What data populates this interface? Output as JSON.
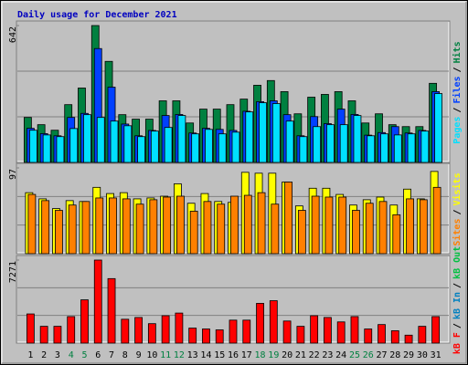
{
  "title": "Daily usage for December 2021",
  "legend_separator": "/",
  "chart_data": [
    {
      "type": "bar",
      "ylim": [
        0,
        642
      ],
      "yticks": [
        642
      ],
      "series": [
        {
          "name": "Hits",
          "color": "#008040",
          "values": [
            211,
            177,
            151,
            271,
            349,
            642,
            474,
            224,
            203,
            203,
            289,
            289,
            185,
            250,
            250,
            271,
            297,
            362,
            384,
            332,
            228,
            306,
            319,
            332,
            289,
            185,
            228,
            177,
            168,
            168,
            371
          ]
        },
        {
          "name": "Files",
          "color": "#0040ff",
          "values": [
            160,
            135,
            125,
            211,
            230,
            534,
            353,
            180,
            125,
            150,
            220,
            225,
            138,
            160,
            155,
            150,
            240,
            285,
            289,
            224,
            125,
            215,
            182,
            250,
            225,
            128,
            140,
            168,
            138,
            150,
            332
          ]
        },
        {
          "name": "Pages",
          "color": "#00e0ff",
          "values": [
            151,
            129,
            121,
            159,
            224,
            211,
            194,
            172,
            121,
            147,
            164,
            220,
            134,
            155,
            134,
            142,
            237,
            280,
            276,
            194,
            121,
            168,
            177,
            177,
            220,
            125,
            134,
            129,
            134,
            147,
            323
          ]
        }
      ]
    },
    {
      "type": "bar",
      "ylim": [
        0,
        97
      ],
      "yticks": [
        97
      ],
      "series": [
        {
          "name": "Visits",
          "color": "#ffff00",
          "values": [
            69,
            62,
            51,
            60,
            59,
            75,
            68,
            69,
            62,
            63,
            65,
            79,
            57,
            68,
            59,
            58,
            92,
            91,
            91,
            81,
            54,
            74,
            74,
            67,
            55,
            61,
            64,
            55,
            73,
            62,
            93
          ]
        },
        {
          "name": "Sites",
          "color": "#ff8000",
          "values": [
            67,
            60,
            49,
            55,
            59,
            63,
            63,
            62,
            56,
            61,
            64,
            65,
            48,
            59,
            56,
            65,
            66,
            69,
            56,
            81,
            49,
            65,
            64,
            64,
            49,
            57,
            59,
            44,
            62,
            61,
            75
          ]
        }
      ]
    },
    {
      "type": "bar",
      "ylim": [
        0,
        7271
      ],
      "yticks": [
        7271
      ],
      "categories": [
        "1",
        "2",
        "3",
        "4",
        "5",
        "6",
        "7",
        "8",
        "9",
        "10",
        "11",
        "12",
        "13",
        "14",
        "15",
        "16",
        "17",
        "18",
        "19",
        "20",
        "21",
        "22",
        "23",
        "24",
        "25",
        "26",
        "27",
        "28",
        "29",
        "30",
        "31"
      ],
      "category_colors": [
        "#000000",
        "#000000",
        "#000000",
        "#008040",
        "#008040",
        "#000000",
        "#000000",
        "#000000",
        "#000000",
        "#000000",
        "#008040",
        "#008040",
        "#000000",
        "#000000",
        "#000000",
        "#000000",
        "#000000",
        "#008040",
        "#008040",
        "#000000",
        "#000000",
        "#000000",
        "#000000",
        "#000000",
        "#008040",
        "#008040",
        "#000000",
        "#000000",
        "#000000",
        "#000000",
        "#000000"
      ],
      "series": [
        {
          "name": "kB F",
          "color": "#ff0000",
          "values": [
            2553,
            1470,
            1470,
            2320,
            3790,
            7271,
            5647,
            2089,
            2243,
            1702,
            2398,
            2630,
            1315,
            1238,
            1160,
            2011,
            2011,
            3481,
            3713,
            1934,
            1470,
            2398,
            2243,
            1856,
            2320,
            1238,
            1624,
            1083,
            696,
            1470,
            2320
          ]
        },
        {
          "name": "kB In",
          "color": "#0080c0"
        },
        {
          "name": "kB Out",
          "color": "#00c040"
        }
      ]
    }
  ]
}
